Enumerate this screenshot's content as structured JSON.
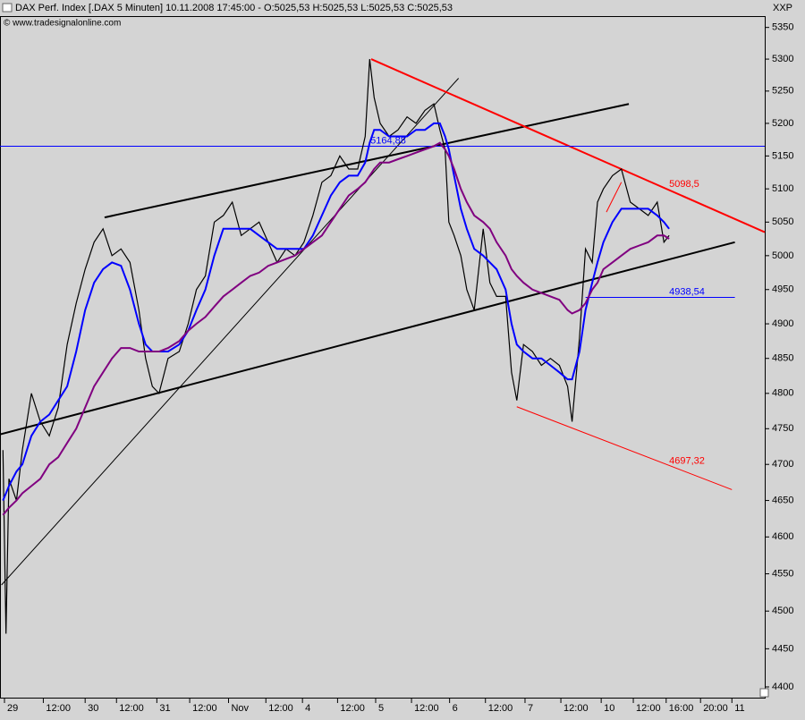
{
  "chart_data": {
    "type": "line",
    "title": "DAX Perf. Index [.DAX  5 Minuten] 10.11.2008 17:45:00 - O:5025,53 H:5025,53 L:5025,53 C:5025,53",
    "subtitle": "© www.tradesignalonline.com",
    "y_axis_label": "XXP",
    "log_y": true,
    "xlim": [
      -0.06,
      10.18
    ],
    "ylim": [
      4386,
      5368
    ],
    "yticks": [
      4400,
      4450,
      4500,
      4550,
      4600,
      4650,
      4700,
      4750,
      4800,
      4850,
      4900,
      4950,
      5000,
      5050,
      5100,
      5150,
      5200,
      5250,
      5300,
      5350
    ],
    "xticks": [
      {
        "value": 0,
        "label": "29"
      },
      {
        "value": 0.52,
        "label": "12:00"
      },
      {
        "value": 1.08,
        "label": "30"
      },
      {
        "value": 1.5,
        "label": "12:00"
      },
      {
        "value": 2.04,
        "label": "31"
      },
      {
        "value": 2.48,
        "label": "12:00"
      },
      {
        "value": 3.0,
        "label": "Nov"
      },
      {
        "value": 3.5,
        "label": "12:00"
      },
      {
        "value": 3.99,
        "label": "4"
      },
      {
        "value": 4.46,
        "label": "12:00"
      },
      {
        "value": 4.97,
        "label": "5"
      },
      {
        "value": 5.45,
        "label": "12:00"
      },
      {
        "value": 5.96,
        "label": "6"
      },
      {
        "value": 6.44,
        "label": "12:00"
      },
      {
        "value": 6.97,
        "label": "7"
      },
      {
        "value": 7.45,
        "label": "12:00"
      },
      {
        "value": 7.99,
        "label": "10"
      },
      {
        "value": 8.42,
        "label": "12:00"
      },
      {
        "value": 8.86,
        "label": "16:00"
      },
      {
        "value": 9.32,
        "label": "20:00"
      },
      {
        "value": 9.74,
        "label": "11"
      }
    ],
    "x": [
      -0.02,
      0.02,
      0.06,
      0.16,
      0.24,
      0.36,
      0.48,
      0.6,
      0.72,
      0.84,
      0.96,
      1.08,
      1.2,
      1.32,
      1.44,
      1.56,
      1.68,
      1.8,
      1.89,
      1.98,
      2.07,
      2.19,
      2.34,
      2.46,
      2.57,
      2.69,
      2.81,
      2.93,
      3.05,
      3.17,
      3.29,
      3.41,
      3.53,
      3.65,
      3.77,
      3.89,
      4.01,
      4.13,
      4.25,
      4.37,
      4.49,
      4.61,
      4.73,
      4.83,
      4.89,
      4.95,
      5.03,
      5.15,
      5.27,
      5.39,
      5.51,
      5.63,
      5.75,
      5.83,
      5.9,
      5.95,
      6.02,
      6.11,
      6.19,
      6.29,
      6.41,
      6.5,
      6.59,
      6.71,
      6.79,
      6.86,
      6.95,
      7.07,
      7.19,
      7.31,
      7.43,
      7.54,
      7.6,
      7.7,
      7.78,
      7.87,
      7.94,
      8.02,
      8.14,
      8.26,
      8.38,
      8.5,
      8.62,
      8.74,
      8.83,
      8.9
    ],
    "series": [
      {
        "color": "#000000",
        "width": 1.2,
        "values": [
          4720,
          4470,
          4680,
          4650,
          4720,
          4800,
          4760,
          4740,
          4780,
          4870,
          4930,
          4980,
          5020,
          5040,
          5000,
          5010,
          4990,
          4920,
          4850,
          4810,
          4800,
          4850,
          4860,
          4900,
          4950,
          4970,
          5050,
          5060,
          5080,
          5030,
          5040,
          5050,
          5020,
          4990,
          5010,
          5000,
          5020,
          5060,
          5110,
          5120,
          5150,
          5130,
          5130,
          5180,
          5300,
          5240,
          5200,
          5180,
          5190,
          5210,
          5200,
          5220,
          5230,
          5190,
          5160,
          5050,
          5030,
          5000,
          4950,
          4920,
          5040,
          4960,
          4940,
          4940,
          4830,
          4790,
          4870,
          4860,
          4840,
          4850,
          4840,
          4810,
          4760,
          4880,
          5010,
          4990,
          5080,
          5100,
          5120,
          5130,
          5080,
          5070,
          5060,
          5080,
          5020,
          5030
        ]
      },
      {
        "color": "#0000ff",
        "width": 2,
        "values": [
          4650,
          4660,
          4670,
          4690,
          4700,
          4740,
          4760,
          4770,
          4790,
          4810,
          4860,
          4920,
          4960,
          4980,
          4990,
          4985,
          4950,
          4900,
          4870,
          4860,
          4860,
          4860,
          4870,
          4890,
          4920,
          4950,
          5000,
          5040,
          5040,
          5040,
          5040,
          5030,
          5020,
          5010,
          5010,
          5010,
          5010,
          5030,
          5060,
          5090,
          5110,
          5120,
          5120,
          5140,
          5170,
          5190,
          5190,
          5180,
          5180,
          5180,
          5190,
          5190,
          5200,
          5200,
          5180,
          5160,
          5120,
          5070,
          5040,
          5010,
          5000,
          4990,
          4980,
          4950,
          4900,
          4870,
          4860,
          4850,
          4850,
          4840,
          4830,
          4820,
          4820,
          4860,
          4920,
          4960,
          4990,
          5020,
          5050,
          5070,
          5070,
          5070,
          5070,
          5060,
          5050,
          5040
        ]
      },
      {
        "color": "#800080",
        "width": 2,
        "values": [
          4630,
          4635,
          4640,
          4650,
          4660,
          4670,
          4680,
          4700,
          4710,
          4730,
          4750,
          4780,
          4810,
          4830,
          4850,
          4865,
          4865,
          4860,
          4860,
          4860,
          4860,
          4865,
          4875,
          4890,
          4900,
          4910,
          4925,
          4940,
          4950,
          4960,
          4970,
          4975,
          4985,
          4990,
          4995,
          5000,
          5010,
          5020,
          5030,
          5050,
          5070,
          5090,
          5100,
          5110,
          5120,
          5130,
          5140,
          5140,
          5145,
          5150,
          5155,
          5160,
          5165,
          5170,
          5160,
          5150,
          5130,
          5100,
          5080,
          5060,
          5050,
          5040,
          5020,
          5000,
          4980,
          4970,
          4960,
          4950,
          4945,
          4940,
          4935,
          4920,
          4915,
          4920,
          4930,
          4950,
          4960,
          4980,
          4990,
          5000,
          5010,
          5015,
          5020,
          5030,
          5030,
          5025
        ]
      }
    ],
    "lines": [
      {
        "color": "#000000",
        "width": 2,
        "x": [
          -0.06,
          9.78
        ],
        "y": [
          4742,
          5020
        ]
      },
      {
        "color": "#000000",
        "width": 2,
        "x": [
          1.34,
          8.36
        ],
        "y": [
          5057,
          5230
        ]
      },
      {
        "color": "#000000",
        "width": 1,
        "x": [
          -0.04,
          6.08
        ],
        "y": [
          4535,
          5270
        ]
      },
      {
        "color": "#ff0000",
        "width": 2,
        "x": [
          4.91,
          10.18
        ],
        "y": [
          5300,
          5035
        ]
      },
      {
        "color": "#ff0000",
        "width": 1,
        "x": [
          6.86,
          9.74
        ],
        "y": [
          4781,
          4665
        ]
      },
      {
        "color": "#ff0000",
        "width": 1,
        "x": [
          8.06,
          8.26
        ],
        "y": [
          5065,
          5110
        ]
      },
      {
        "color": "#0000ff",
        "width": 1,
        "x": [
          -0.06,
          10.18
        ],
        "y": [
          5164.88,
          5164.88
        ]
      },
      {
        "color": "#0000ff",
        "width": 1,
        "x": [
          7.78,
          9.78
        ],
        "y": [
          4938.54,
          4938.54
        ]
      }
    ],
    "labels": [
      {
        "label": "5164,88",
        "value": 5164.88,
        "x": 4.9,
        "color": "#0000ff"
      },
      {
        "label": "5098,5",
        "value": 5098.5,
        "x": 8.9,
        "color": "#ff0000"
      },
      {
        "label": "4938,54",
        "value": 4938.54,
        "x": 8.9,
        "color": "#0000ff"
      },
      {
        "label": "4697,32",
        "value": 4697.32,
        "x": 8.9,
        "color": "#ff0000"
      }
    ]
  }
}
